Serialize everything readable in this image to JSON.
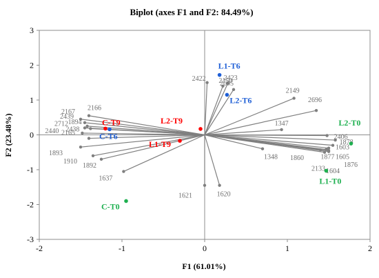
{
  "chart_data": {
    "type": "scatter",
    "title": "Biplot (axes F1 and F2: 84.49%)",
    "xlabel": "F1 (61.01%)",
    "ylabel": "F2 (23.48%)",
    "xlim": [
      -2,
      2
    ],
    "ylim": [
      -3,
      3
    ],
    "xticks": [
      "-2",
      "-1",
      "0",
      "1",
      "2"
    ],
    "yticks": [
      "-3",
      "-2",
      "-1",
      "0",
      "1",
      "2",
      "3"
    ],
    "grid": false,
    "colors": {
      "vector": "#7f7f7f",
      "vector_label": "#6e6e6e",
      "red": "#ff0000",
      "blue": "#1f5fd6",
      "green": "#1fb050"
    },
    "variables": [
      {
        "name": "2422",
        "x": 0.03,
        "y": 1.5
      },
      {
        "name": "2150",
        "x": 0.22,
        "y": 1.4
      },
      {
        "name": "2423",
        "x": 0.28,
        "y": 1.48
      },
      {
        "name": "2695",
        "x": 0.35,
        "y": 1.3
      },
      {
        "name": "2149",
        "x": 1.08,
        "y": 1.05
      },
      {
        "name": "2696",
        "x": 1.35,
        "y": 0.7
      },
      {
        "name": "1347",
        "x": 0.93,
        "y": 0.15
      },
      {
        "name": "2406",
        "x": 1.48,
        "y": -0.02
      },
      {
        "name": "1878",
        "x": 1.58,
        "y": -0.15
      },
      {
        "name": "1603",
        "x": 1.55,
        "y": -0.3
      },
      {
        "name": "1605",
        "x": 1.5,
        "y": -0.38
      },
      {
        "name": "1877",
        "x": 1.47,
        "y": -0.42
      },
      {
        "name": "1876",
        "x": 1.5,
        "y": -0.45
      },
      {
        "name": "1860",
        "x": 1.4,
        "y": -0.43
      },
      {
        "name": "1348",
        "x": 0.7,
        "y": -0.4
      },
      {
        "name": "2133",
        "x": 1.5,
        "y": -0.48
      },
      {
        "name": "1604",
        "x": 1.45,
        "y": -0.5
      },
      {
        "name": "1620",
        "x": 0.18,
        "y": -1.45
      },
      {
        "name": "1621",
        "x": 0.0,
        "y": -1.45
      },
      {
        "name": "1637",
        "x": -0.98,
        "y": -1.05
      },
      {
        "name": "1892",
        "x": -1.25,
        "y": -0.7
      },
      {
        "name": "1910",
        "x": -1.35,
        "y": -0.6
      },
      {
        "name": "1893",
        "x": -1.5,
        "y": -0.35
      },
      {
        "name": "2165",
        "x": -1.4,
        "y": -0.1
      },
      {
        "name": "2440",
        "x": -1.48,
        "y": 0.05
      },
      {
        "name": "2438",
        "x": -1.38,
        "y": 0.18
      },
      {
        "name": "2712",
        "x": -1.45,
        "y": 0.2
      },
      {
        "name": "1894",
        "x": -1.42,
        "y": 0.25
      },
      {
        "name": "2439",
        "x": -1.45,
        "y": 0.35
      },
      {
        "name": "2167",
        "x": -1.5,
        "y": 0.45
      },
      {
        "name": "2166",
        "x": -1.4,
        "y": 0.55
      }
    ],
    "observations": [
      {
        "name": "L1-T6",
        "x": 0.18,
        "y": 1.72,
        "group": "blue"
      },
      {
        "name": "L2-T6",
        "x": 0.27,
        "y": 1.15,
        "group": "blue"
      },
      {
        "name": "C-T9",
        "x": -1.2,
        "y": 0.18,
        "group": "red"
      },
      {
        "name": "C-T6",
        "x": -1.15,
        "y": 0.16,
        "group": "blue"
      },
      {
        "name": "L2-T9",
        "x": -0.05,
        "y": 0.17,
        "group": "red"
      },
      {
        "name": "L1-T9",
        "x": -0.3,
        "y": -0.17,
        "group": "red"
      },
      {
        "name": "L2-T0",
        "x": 1.77,
        "y": -0.25,
        "group": "green"
      },
      {
        "name": "L1-T0",
        "x": 1.47,
        "y": -1.03,
        "group": "green"
      },
      {
        "name": "C-T0",
        "x": -0.95,
        "y": -1.9,
        "group": "green"
      }
    ]
  }
}
